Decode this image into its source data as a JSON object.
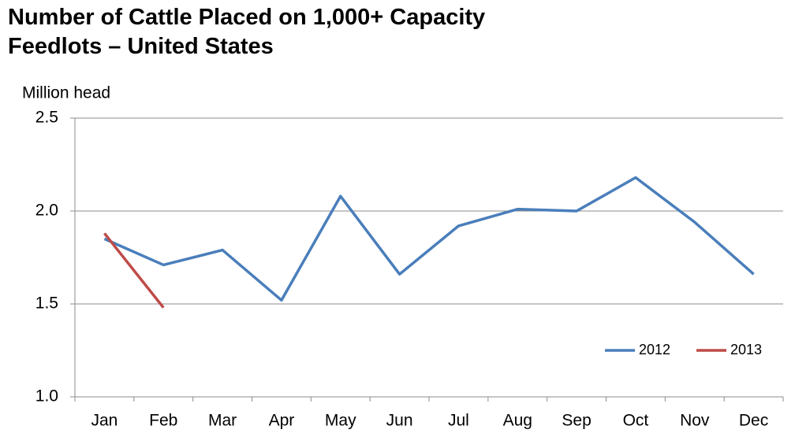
{
  "chart_data": {
    "type": "line",
    "title": "Number of Cattle Placed on 1,000+ Capacity Feedlots – United States",
    "y_axis_label": "Million head",
    "categories": [
      "Jan",
      "Feb",
      "Mar",
      "Apr",
      "May",
      "Jun",
      "Jul",
      "Aug",
      "Sep",
      "Oct",
      "Nov",
      "Dec"
    ],
    "series": [
      {
        "name": "2012",
        "color": "#4a7ebb",
        "values": [
          1.85,
          1.71,
          1.79,
          1.52,
          2.08,
          1.66,
          1.92,
          2.01,
          2.0,
          2.18,
          1.94,
          1.66
        ]
      },
      {
        "name": "2013",
        "color": "#be4b48",
        "values": [
          1.88,
          1.48,
          null,
          null,
          null,
          null,
          null,
          null,
          null,
          null,
          null,
          null
        ]
      }
    ],
    "ylim": [
      1.0,
      2.5
    ],
    "yticks": [
      {
        "value": 1.0,
        "label": "1.0"
      },
      {
        "value": 1.5,
        "label": "1.5"
      },
      {
        "value": 2.0,
        "label": "2.0"
      },
      {
        "value": 2.5,
        "label": "2.5"
      }
    ],
    "grid": true,
    "legend": "bottom-right"
  }
}
